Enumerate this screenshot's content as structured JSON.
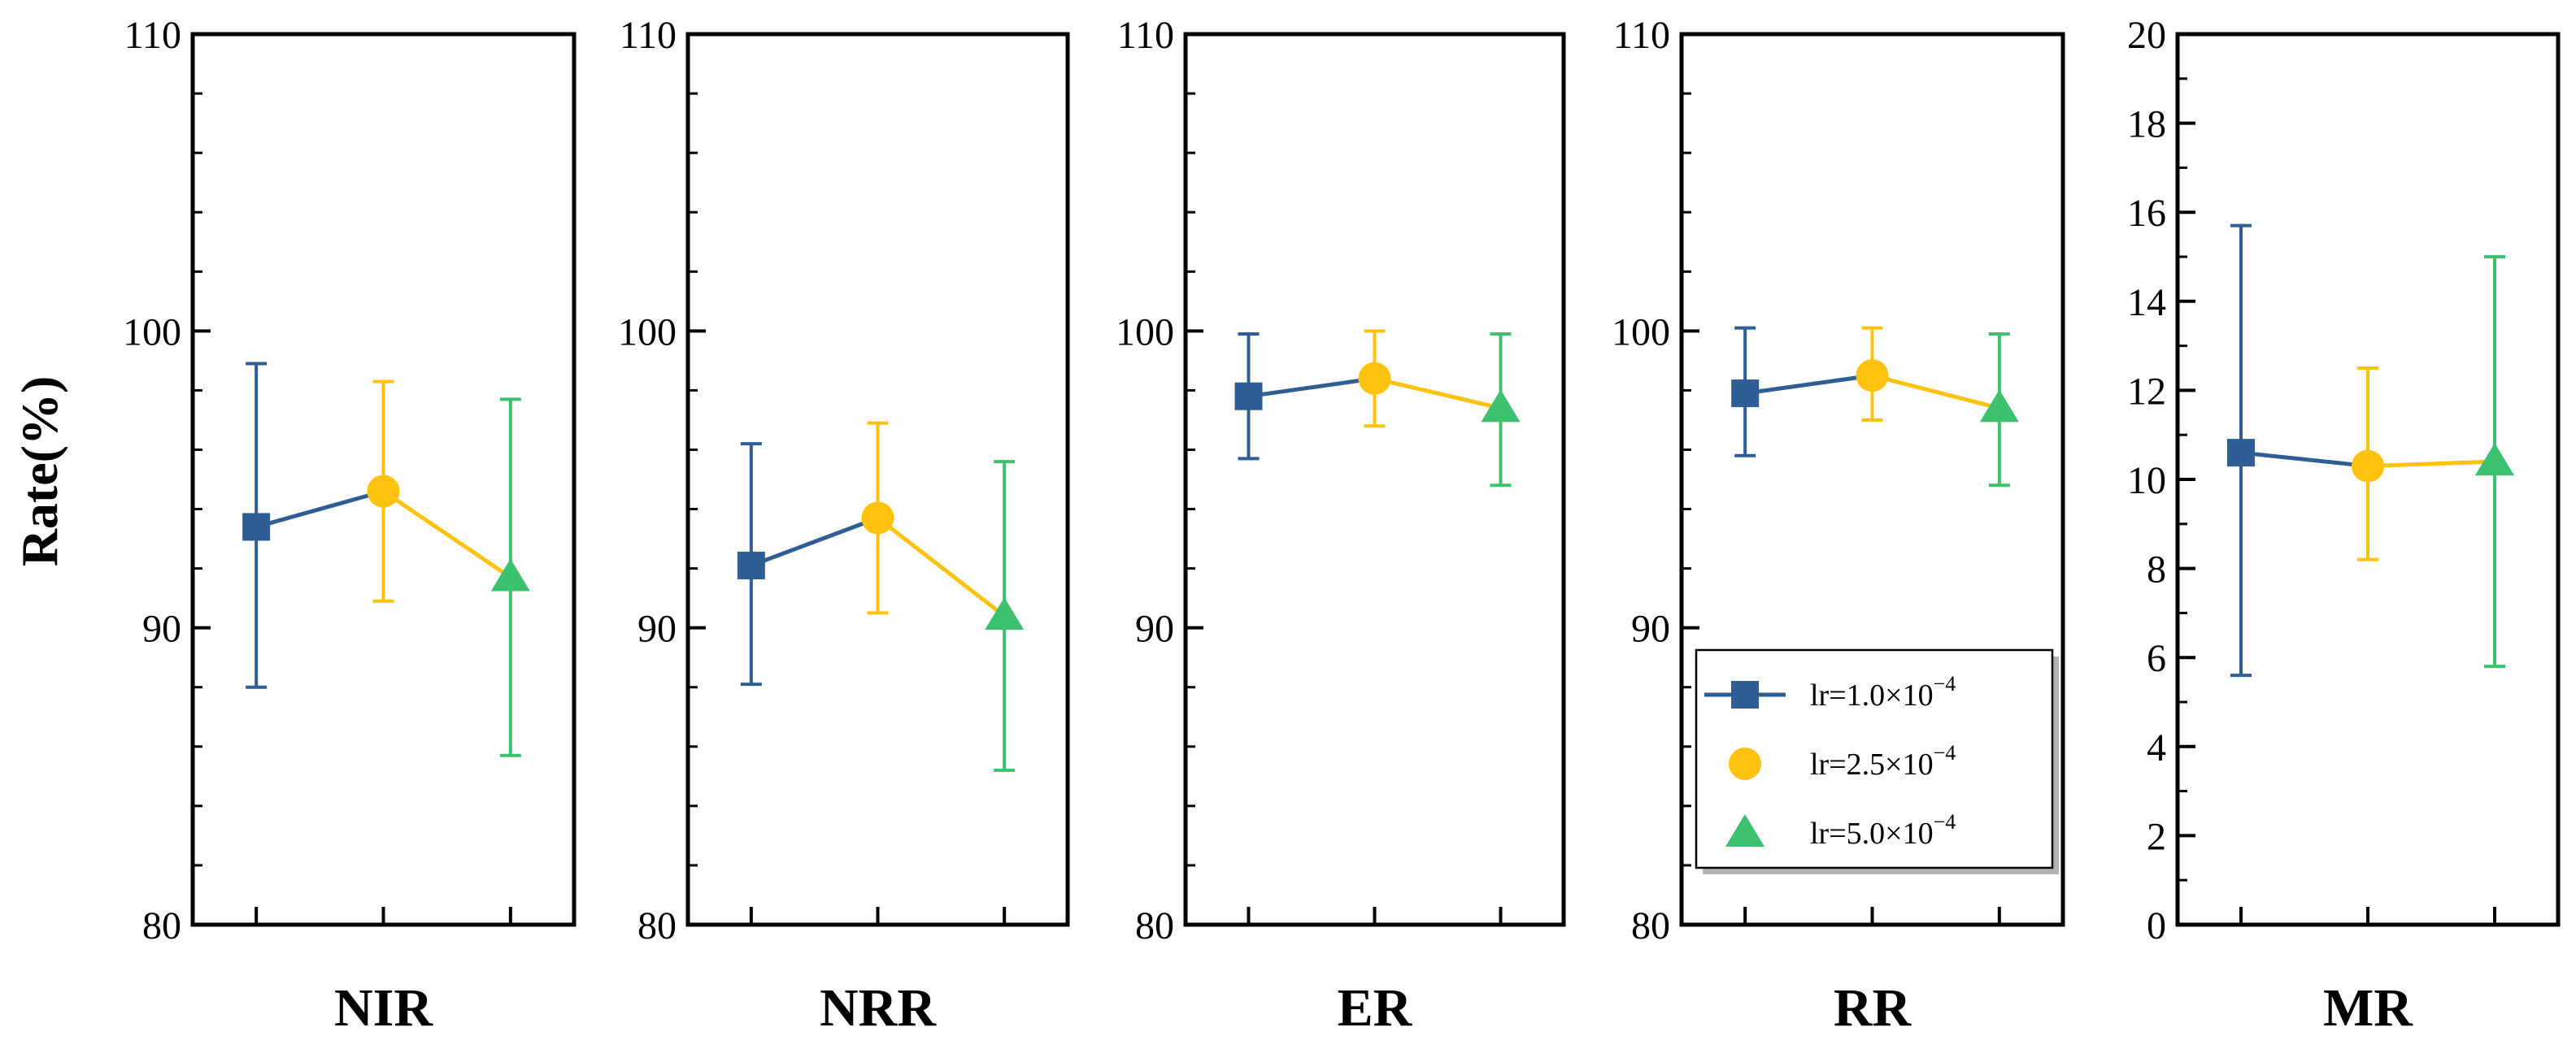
{
  "chart_data": {
    "type": "line",
    "ylabel": "Rate(%)",
    "errorbars": true,
    "grid": false,
    "legend": {
      "placement": "lower-right of RR panel",
      "entries": [
        {
          "series": 0,
          "prefix": "lr=1.0×10",
          "exp": "−4"
        },
        {
          "series": 1,
          "prefix": "lr=2.5×10",
          "exp": "−4"
        },
        {
          "series": 2,
          "prefix": "lr=5.0×10",
          "exp": "−4"
        }
      ]
    },
    "series": [
      {
        "name": "lr=1.0×10^-4",
        "color": "#2E5E93",
        "marker": "square"
      },
      {
        "name": "lr=2.5×10^-4",
        "color": "#FFC20E",
        "marker": "circle"
      },
      {
        "name": "lr=5.0×10^-4",
        "color": "#3CC16E",
        "marker": "triangle"
      }
    ],
    "panels": [
      {
        "label": "NIR",
        "ylim": [
          80,
          110
        ],
        "yticks": [
          80,
          90,
          100,
          110
        ],
        "ytick_labels": [
          "80",
          "90",
          "100",
          "110"
        ],
        "means": [
          93.4,
          94.6,
          91.7
        ],
        "lower": [
          88.0,
          90.9,
          85.7
        ],
        "upper": [
          98.9,
          98.3,
          97.7
        ]
      },
      {
        "label": "NRR",
        "ylim": [
          80,
          110
        ],
        "yticks": [
          80,
          90,
          100,
          110
        ],
        "ytick_labels": [
          "80",
          "90",
          "100",
          "110"
        ],
        "means": [
          92.1,
          93.7,
          90.4
        ],
        "lower": [
          88.1,
          90.5,
          85.2
        ],
        "upper": [
          96.2,
          96.9,
          95.6
        ]
      },
      {
        "label": "ER",
        "ylim": [
          80,
          110
        ],
        "yticks": [
          80,
          90,
          100,
          110
        ],
        "ytick_labels": [
          "80",
          "90",
          "100",
          "110"
        ],
        "means": [
          97.8,
          98.4,
          97.4
        ],
        "lower": [
          95.7,
          96.8,
          94.8
        ],
        "upper": [
          99.9,
          100.0,
          99.9
        ]
      },
      {
        "label": "RR",
        "ylim": [
          80,
          110
        ],
        "yticks": [
          80,
          90,
          100,
          110
        ],
        "ytick_labels": [
          "80",
          "90",
          "100",
          "110"
        ],
        "means": [
          97.9,
          98.5,
          97.4
        ],
        "lower": [
          95.8,
          97.0,
          94.8
        ],
        "upper": [
          100.1,
          100.1,
          99.9
        ]
      },
      {
        "label": "MR",
        "ylim": [
          0,
          20
        ],
        "yticks": [
          0,
          2,
          4,
          6,
          8,
          10,
          12,
          14,
          16,
          18,
          20
        ],
        "ytick_labels": [
          "0",
          "2",
          "4",
          "6",
          "8",
          "10",
          "12",
          "14",
          "16",
          "18",
          "20"
        ],
        "means": [
          10.6,
          10.3,
          10.4
        ],
        "lower": [
          5.6,
          8.2,
          5.8
        ],
        "upper": [
          15.7,
          12.5,
          15.0
        ]
      }
    ]
  }
}
